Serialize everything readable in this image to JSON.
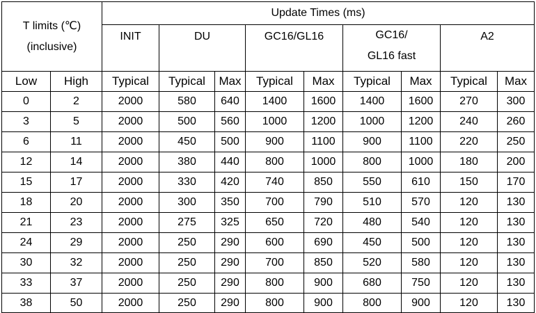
{
  "header": {
    "t_limits_line1": "T limits (℃)",
    "t_limits_line2": "(inclusive)",
    "update_times": "Update Times (ms)",
    "modes": {
      "init": "INIT",
      "du": "DU",
      "gc16_gl16": "GC16/GL16",
      "gc16_fast_line1": "GC16/",
      "gc16_fast_line2": "GL16 fast",
      "a2": "A2"
    },
    "sub": {
      "low": "Low",
      "high": "High",
      "init_typ": "Typical",
      "du_typ": "Typical",
      "du_max": "Max",
      "gc_typ": "Typical",
      "gc_max": "Max",
      "gcf_typ": "Typical",
      "gcf_max": "Max",
      "a2_typ": "Typical",
      "a2_max": "Max"
    }
  },
  "rows": [
    [
      "0",
      "2",
      "2000",
      "580",
      "640",
      "1400",
      "1600",
      "1400",
      "1600",
      "270",
      "300"
    ],
    [
      "3",
      "5",
      "2000",
      "500",
      "560",
      "1000",
      "1200",
      "1000",
      "1200",
      "240",
      "260"
    ],
    [
      "6",
      "11",
      "2000",
      "450",
      "500",
      "900",
      "1100",
      "900",
      "1100",
      "220",
      "250"
    ],
    [
      "12",
      "14",
      "2000",
      "380",
      "440",
      "800",
      "1000",
      "800",
      "1000",
      "180",
      "200"
    ],
    [
      "15",
      "17",
      "2000",
      "330",
      "420",
      "740",
      "850",
      "550",
      "610",
      "150",
      "170"
    ],
    [
      "18",
      "20",
      "2000",
      "300",
      "350",
      "700",
      "790",
      "510",
      "570",
      "120",
      "130"
    ],
    [
      "21",
      "23",
      "2000",
      "275",
      "325",
      "650",
      "720",
      "480",
      "540",
      "120",
      "130"
    ],
    [
      "24",
      "29",
      "2000",
      "250",
      "290",
      "600",
      "690",
      "450",
      "500",
      "120",
      "130"
    ],
    [
      "30",
      "32",
      "2000",
      "250",
      "290",
      "700",
      "850",
      "520",
      "580",
      "120",
      "130"
    ],
    [
      "33",
      "37",
      "2000",
      "250",
      "290",
      "800",
      "900",
      "680",
      "750",
      "120",
      "130"
    ],
    [
      "38",
      "50",
      "2000",
      "250",
      "290",
      "800",
      "900",
      "800",
      "900",
      "120",
      "130"
    ]
  ]
}
